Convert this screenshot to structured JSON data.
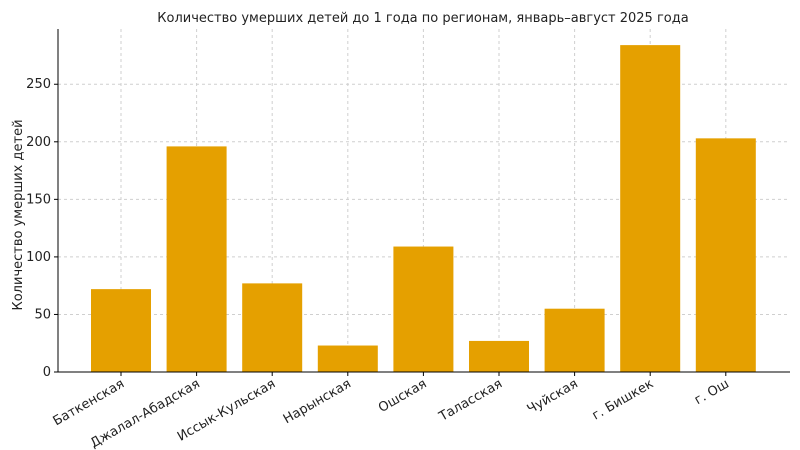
{
  "chart_data": {
    "type": "bar",
    "title": "Количество умерших детей до 1 года по регионам, январь–август 2025 года",
    "xlabel": "",
    "ylabel": "Количество умерших детей",
    "categories": [
      "Баткенская",
      "Джалал-Абадская",
      "Иссык-Кульская",
      "Нарынская",
      "Ошская",
      "Таласская",
      "Чуйская",
      "г. Бишкек",
      "г. Ош"
    ],
    "values": [
      72,
      196,
      77,
      23,
      109,
      27,
      55,
      284,
      203
    ],
    "ylim": [
      0,
      298
    ],
    "yticks": [
      0,
      50,
      100,
      150,
      200,
      250
    ],
    "grid": true,
    "bar_color": "#e5a000"
  }
}
